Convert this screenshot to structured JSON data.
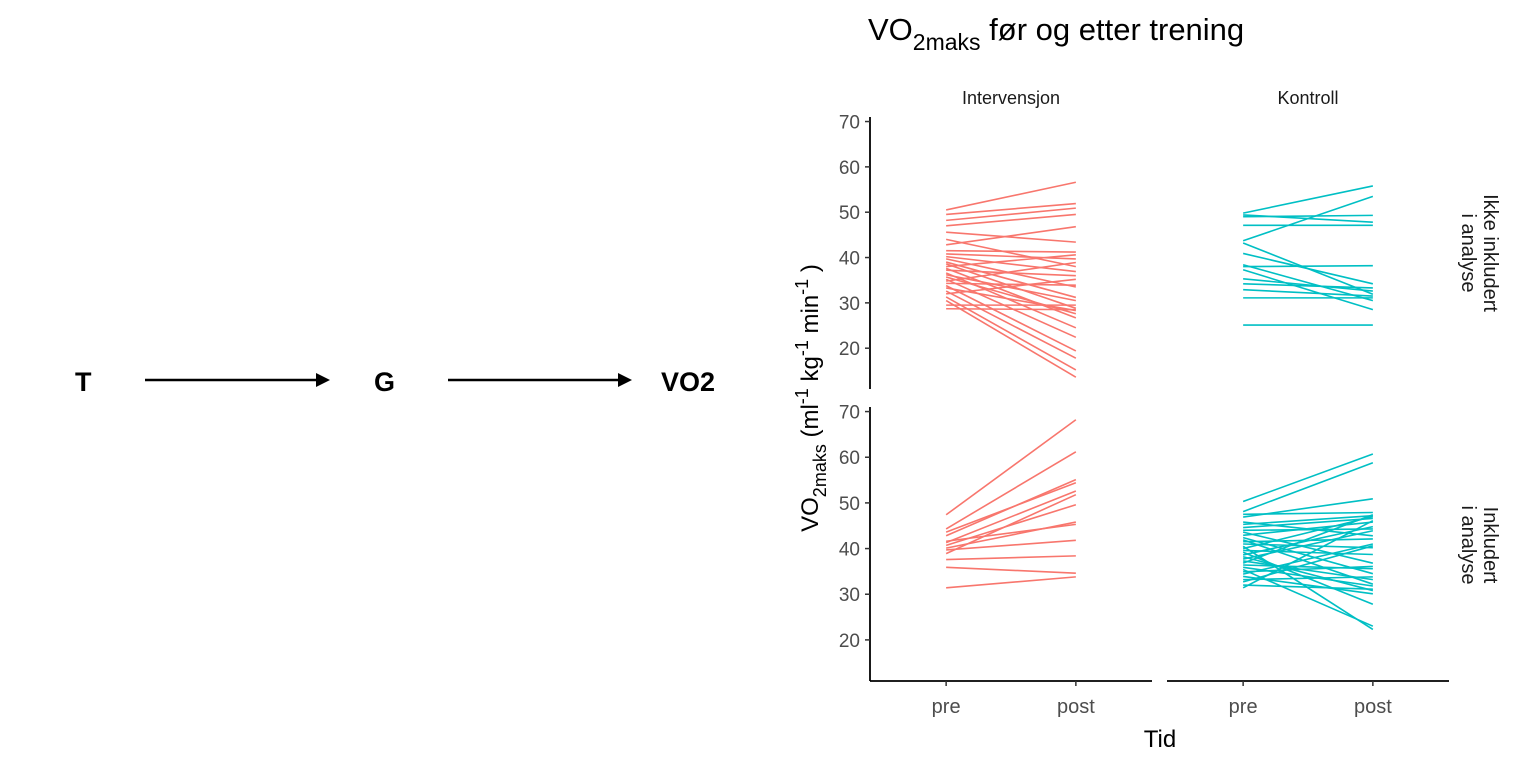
{
  "dag": {
    "nodes": [
      "T",
      "G",
      "VO2"
    ],
    "edges": [
      [
        "T",
        "G"
      ],
      [
        "G",
        "VO2"
      ]
    ]
  },
  "chart_data": {
    "type": "line",
    "title_main": "VO",
    "title_sub": "2maks",
    "title_rest": " før og etter trening",
    "ylabel_main": "VO",
    "ylabel_sub": "2maks",
    "ylabel_rest": " (ml",
    "ylabel_sup1": "-1",
    "ylabel_kg": "  kg",
    "ylabel_sup2": "-1",
    "ylabel_min": "  min",
    "ylabel_sup3": "-1",
    "ylabel_close": " )",
    "xlabel": "Tid",
    "x_categories": [
      "pre",
      "post"
    ],
    "y_ticks": [
      20,
      30,
      40,
      50,
      60,
      70
    ],
    "ylim": [
      11,
      71
    ],
    "columns": [
      "Intervensjon",
      "Kontroll"
    ],
    "rows": [
      "Ikke inkludert\ni analyse",
      "Inkludert\ni analyse"
    ],
    "colors": {
      "Intervensjon": "#F8766D",
      "Kontroll": "#00BFC4"
    },
    "facets": [
      {
        "col": "Intervensjon",
        "row": "Ikke inkludert\ni analyse",
        "lines": [
          [
            50.5,
            56.6
          ],
          [
            49.5,
            51.9
          ],
          [
            48.2,
            50.9
          ],
          [
            47.0,
            49.5
          ],
          [
            45.6,
            43.4
          ],
          [
            44.0,
            38.0
          ],
          [
            42.8,
            46.8
          ],
          [
            41.5,
            41.2
          ],
          [
            40.8,
            39.7
          ],
          [
            40.2,
            36.9
          ],
          [
            39.7,
            33.5
          ],
          [
            39.0,
            31.2
          ],
          [
            38.6,
            28.8
          ],
          [
            38.0,
            40.6
          ],
          [
            37.6,
            26.7
          ],
          [
            37.2,
            36.0
          ],
          [
            36.6,
            24.5
          ],
          [
            36.2,
            30.5
          ],
          [
            35.7,
            27.6
          ],
          [
            35.2,
            22.4
          ],
          [
            34.8,
            38.9
          ],
          [
            34.3,
            33.9
          ],
          [
            33.8,
            19.4
          ],
          [
            33.3,
            28.3
          ],
          [
            32.6,
            17.8
          ],
          [
            32.0,
            35.2
          ],
          [
            31.3,
            15.2
          ],
          [
            30.5,
            13.6
          ],
          [
            29.5,
            29.5
          ],
          [
            28.7,
            28.5
          ]
        ]
      },
      {
        "col": "Kontroll",
        "row": "Ikke inkludert\ni analyse",
        "lines": [
          [
            49.8,
            55.8
          ],
          [
            49.4,
            47.8
          ],
          [
            49.0,
            49.3
          ],
          [
            47.1,
            47.1
          ],
          [
            43.7,
            53.5
          ],
          [
            43.2,
            31.9
          ],
          [
            40.9,
            34.2
          ],
          [
            38.4,
            30.5
          ],
          [
            38.0,
            38.2
          ],
          [
            37.3,
            28.5
          ],
          [
            35.3,
            32.6
          ],
          [
            34.2,
            33.3
          ],
          [
            32.9,
            31.5
          ],
          [
            31.1,
            31.1
          ],
          [
            25.1,
            25.1
          ]
        ]
      },
      {
        "col": "Intervensjon",
        "row": "Inkludert\ni analyse",
        "lines": [
          [
            47.4,
            68.2
          ],
          [
            44.3,
            61.2
          ],
          [
            43.6,
            54.4
          ],
          [
            42.8,
            55.1
          ],
          [
            41.6,
            45.3
          ],
          [
            41.3,
            52.6
          ],
          [
            40.7,
            49.6
          ],
          [
            40.1,
            45.8
          ],
          [
            39.7,
            41.8
          ],
          [
            38.9,
            51.8
          ],
          [
            37.6,
            38.4
          ],
          [
            35.9,
            34.6
          ],
          [
            31.4,
            33.8
          ]
        ]
      },
      {
        "col": "Kontroll",
        "row": "Inkludert\ni analyse",
        "lines": [
          [
            50.3,
            60.7
          ],
          [
            48.1,
            58.8
          ],
          [
            47.5,
            47.9
          ],
          [
            46.9,
            50.9
          ],
          [
            45.8,
            42.8
          ],
          [
            45.3,
            47.2
          ],
          [
            44.6,
            46.6
          ],
          [
            44.0,
            44.3
          ],
          [
            43.6,
            36.8
          ],
          [
            42.9,
            45.8
          ],
          [
            42.4,
            34.5
          ],
          [
            41.9,
            32.2
          ],
          [
            41.5,
            42.1
          ],
          [
            41.0,
            40.2
          ],
          [
            40.5,
            22.3
          ],
          [
            40.0,
            47.0
          ],
          [
            39.6,
            38.7
          ],
          [
            39.2,
            27.8
          ],
          [
            38.6,
            44.8
          ],
          [
            38.2,
            30.8
          ],
          [
            37.7,
            43.9
          ],
          [
            37.3,
            33.2
          ],
          [
            36.8,
            47.4
          ],
          [
            36.4,
            35.6
          ],
          [
            35.9,
            31.8
          ],
          [
            35.4,
            23.0
          ],
          [
            34.9,
            36.1
          ],
          [
            34.4,
            41.0
          ],
          [
            33.9,
            30.1
          ],
          [
            33.2,
            33.8
          ],
          [
            32.7,
            40.6
          ],
          [
            32.0,
            31.1
          ],
          [
            31.4,
            46.1
          ]
        ]
      }
    ]
  }
}
